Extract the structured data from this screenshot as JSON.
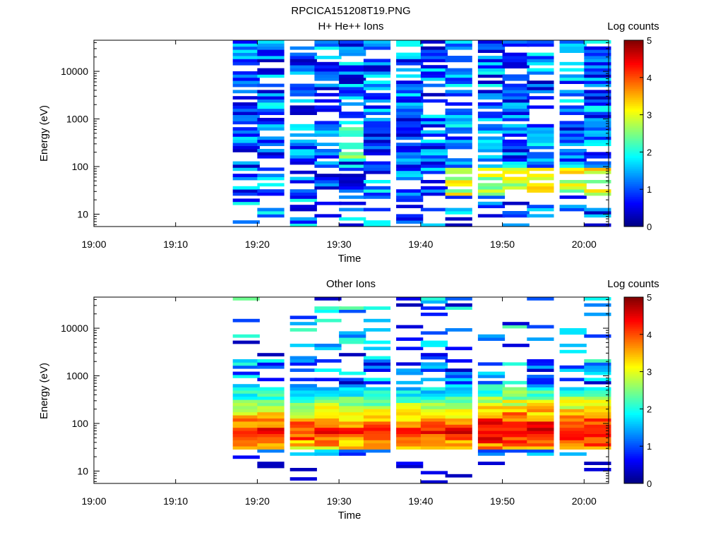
{
  "file_title": "RPCICA151208T19.PNG",
  "colorbar_colors": [
    "#00007f",
    "#0000ff",
    "#007fff",
    "#00ffff",
    "#7fff7f",
    "#ffff00",
    "#ff7f00",
    "#ff0000",
    "#7f0000"
  ],
  "chart_data": [
    {
      "type": "heatmap",
      "title": "H+ He++ Ions",
      "xlabel": "Time",
      "ylabel": "Energy (eV)",
      "x_ticks": [
        "19:00",
        "19:10",
        "19:20",
        "19:30",
        "19:40",
        "19:50",
        "20:00"
      ],
      "xlim": [
        "19:00",
        "20:03"
      ],
      "y_scale": "log",
      "y_ticks": [
        "10",
        "100",
        "1000",
        "10000"
      ],
      "ylim": [
        5.5,
        45000
      ],
      "colorbar": {
        "label": "Log counts",
        "range": [
          0,
          5
        ],
        "ticks": [
          "0",
          "1",
          "2",
          "3",
          "4",
          "5"
        ]
      },
      "time_bins": [
        "19:17",
        "19:20",
        "19:24",
        "19:27",
        "19:30",
        "19:33",
        "19:37",
        "19:40",
        "19:43",
        "19:47",
        "19:50",
        "19:53",
        "19:57",
        "20:00"
      ],
      "grid": false
    },
    {
      "type": "heatmap",
      "title": "Other Ions",
      "xlabel": "Time",
      "ylabel": "Energy (eV)",
      "x_ticks": [
        "19:00",
        "19:10",
        "19:20",
        "19:30",
        "19:40",
        "19:50",
        "20:00"
      ],
      "xlim": [
        "19:00",
        "20:03"
      ],
      "y_scale": "log",
      "y_ticks": [
        "10",
        "100",
        "1000",
        "10000"
      ],
      "ylim": [
        5.5,
        45000
      ],
      "colorbar": {
        "label": "Log counts",
        "range": [
          0,
          5
        ],
        "ticks": [
          "0",
          "1",
          "2",
          "3",
          "4",
          "5"
        ]
      },
      "time_bins": [
        "19:17",
        "19:20",
        "19:24",
        "19:27",
        "19:30",
        "19:33",
        "19:37",
        "19:40",
        "19:43",
        "19:47",
        "19:50",
        "19:53",
        "19:57",
        "20:00"
      ],
      "grid": false
    }
  ]
}
